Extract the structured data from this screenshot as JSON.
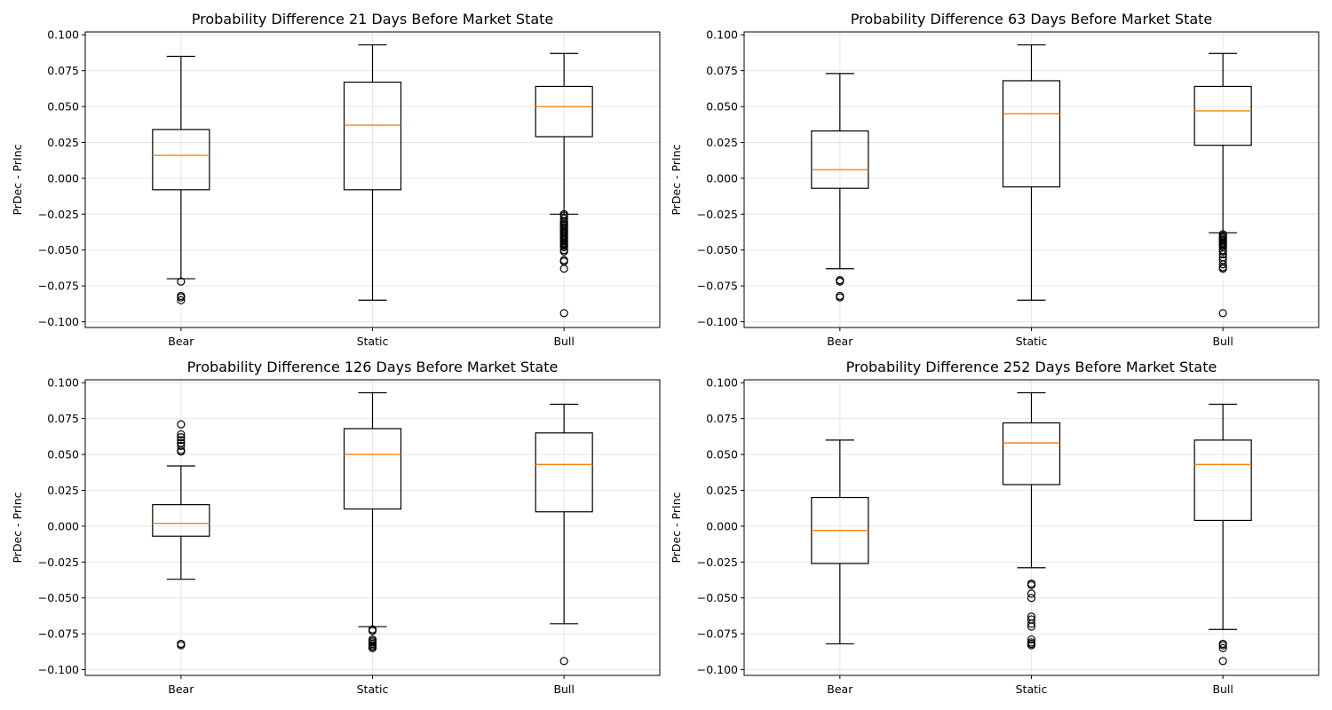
{
  "chart_data": [
    {
      "type": "box",
      "title": "Probability Difference 21 Days Before Market State",
      "ylabel": "PrDec - PrInc",
      "xlabel": "",
      "categories": [
        "Bear",
        "Static",
        "Bull"
      ],
      "ylim": [
        -0.104,
        0.102
      ],
      "yticks": [
        -0.1,
        -0.075,
        -0.05,
        -0.025,
        0.0,
        0.025,
        0.05,
        0.075,
        0.1
      ],
      "grid": true,
      "boxes": [
        {
          "whislo": -0.07,
          "q1": -0.008,
          "med": 0.016,
          "q3": 0.034,
          "whishi": 0.085,
          "fliers": [
            -0.072,
            -0.082,
            -0.083,
            -0.085
          ]
        },
        {
          "whislo": -0.085,
          "q1": -0.008,
          "med": 0.037,
          "q3": 0.067,
          "whishi": 0.093,
          "fliers": []
        },
        {
          "whislo": -0.025,
          "q1": 0.029,
          "med": 0.05,
          "q3": 0.064,
          "whishi": 0.087,
          "fliers": [
            -0.025,
            -0.026,
            -0.028,
            -0.03,
            -0.031,
            -0.032,
            -0.033,
            -0.034,
            -0.035,
            -0.036,
            -0.037,
            -0.038,
            -0.039,
            -0.04,
            -0.041,
            -0.042,
            -0.043,
            -0.044,
            -0.045,
            -0.046,
            -0.047,
            -0.048,
            -0.05,
            -0.051,
            -0.057,
            -0.058,
            -0.063,
            -0.094
          ]
        }
      ]
    },
    {
      "type": "box",
      "title": "Probability Difference 63 Days Before Market State",
      "ylabel": "PrDec - PrInc",
      "xlabel": "",
      "categories": [
        "Bear",
        "Static",
        "Bull"
      ],
      "ylim": [
        -0.104,
        0.102
      ],
      "yticks": [
        -0.1,
        -0.075,
        -0.05,
        -0.025,
        0.0,
        0.025,
        0.05,
        0.075,
        0.1
      ],
      "grid": true,
      "boxes": [
        {
          "whislo": -0.063,
          "q1": -0.007,
          "med": 0.006,
          "q3": 0.033,
          "whishi": 0.073,
          "fliers": [
            -0.071,
            -0.072,
            -0.082,
            -0.083
          ]
        },
        {
          "whislo": -0.085,
          "q1": -0.006,
          "med": 0.045,
          "q3": 0.068,
          "whishi": 0.093,
          "fliers": []
        },
        {
          "whislo": -0.038,
          "q1": 0.023,
          "med": 0.047,
          "q3": 0.064,
          "whishi": 0.087,
          "fliers": [
            -0.039,
            -0.04,
            -0.041,
            -0.042,
            -0.043,
            -0.044,
            -0.045,
            -0.046,
            -0.047,
            -0.048,
            -0.05,
            -0.051,
            -0.053,
            -0.055,
            -0.057,
            -0.06,
            -0.062,
            -0.063,
            -0.094
          ]
        }
      ]
    },
    {
      "type": "box",
      "title": "Probability Difference 126 Days Before Market State",
      "ylabel": "PrDec - PrInc",
      "xlabel": "",
      "categories": [
        "Bear",
        "Static",
        "Bull"
      ],
      "ylim": [
        -0.104,
        0.102
      ],
      "yticks": [
        -0.1,
        -0.075,
        -0.05,
        -0.025,
        0.0,
        0.025,
        0.05,
        0.075,
        0.1
      ],
      "grid": true,
      "boxes": [
        {
          "whislo": -0.037,
          "q1": -0.007,
          "med": 0.002,
          "q3": 0.015,
          "whishi": 0.042,
          "fliers": [
            0.052,
            0.053,
            0.056,
            0.058,
            0.06,
            0.062,
            0.064,
            0.071,
            -0.082,
            -0.083
          ]
        },
        {
          "whislo": -0.07,
          "q1": 0.012,
          "med": 0.05,
          "q3": 0.068,
          "whishi": 0.093,
          "fliers": [
            -0.072,
            -0.073,
            -0.079,
            -0.08,
            -0.081,
            -0.082,
            -0.083,
            -0.084,
            -0.085
          ]
        },
        {
          "whislo": -0.068,
          "q1": 0.01,
          "med": 0.043,
          "q3": 0.065,
          "whishi": 0.085,
          "fliers": [
            -0.094
          ]
        }
      ]
    },
    {
      "type": "box",
      "title": "Probability Difference 252 Days Before Market State",
      "ylabel": "PrDec - PrInc",
      "xlabel": "",
      "categories": [
        "Bear",
        "Static",
        "Bull"
      ],
      "ylim": [
        -0.104,
        0.102
      ],
      "yticks": [
        -0.1,
        -0.075,
        -0.05,
        -0.025,
        0.0,
        0.025,
        0.05,
        0.075,
        0.1
      ],
      "grid": true,
      "boxes": [
        {
          "whislo": -0.082,
          "q1": -0.026,
          "med": -0.003,
          "q3": 0.02,
          "whishi": 0.06,
          "fliers": []
        },
        {
          "whislo": -0.029,
          "q1": 0.029,
          "med": 0.058,
          "q3": 0.072,
          "whishi": 0.093,
          "fliers": [
            -0.04,
            -0.041,
            -0.047,
            -0.05,
            -0.063,
            -0.065,
            -0.068,
            -0.07,
            -0.079,
            -0.081,
            -0.082,
            -0.083
          ]
        },
        {
          "whislo": -0.072,
          "q1": 0.004,
          "med": 0.043,
          "q3": 0.06,
          "whishi": 0.085,
          "fliers": [
            -0.082,
            -0.083,
            -0.085,
            -0.094
          ]
        }
      ]
    }
  ],
  "colors": {
    "median": "#ff7f0e",
    "box": "#000000",
    "grid": "#e6e6e6",
    "background": "#ffffff"
  }
}
